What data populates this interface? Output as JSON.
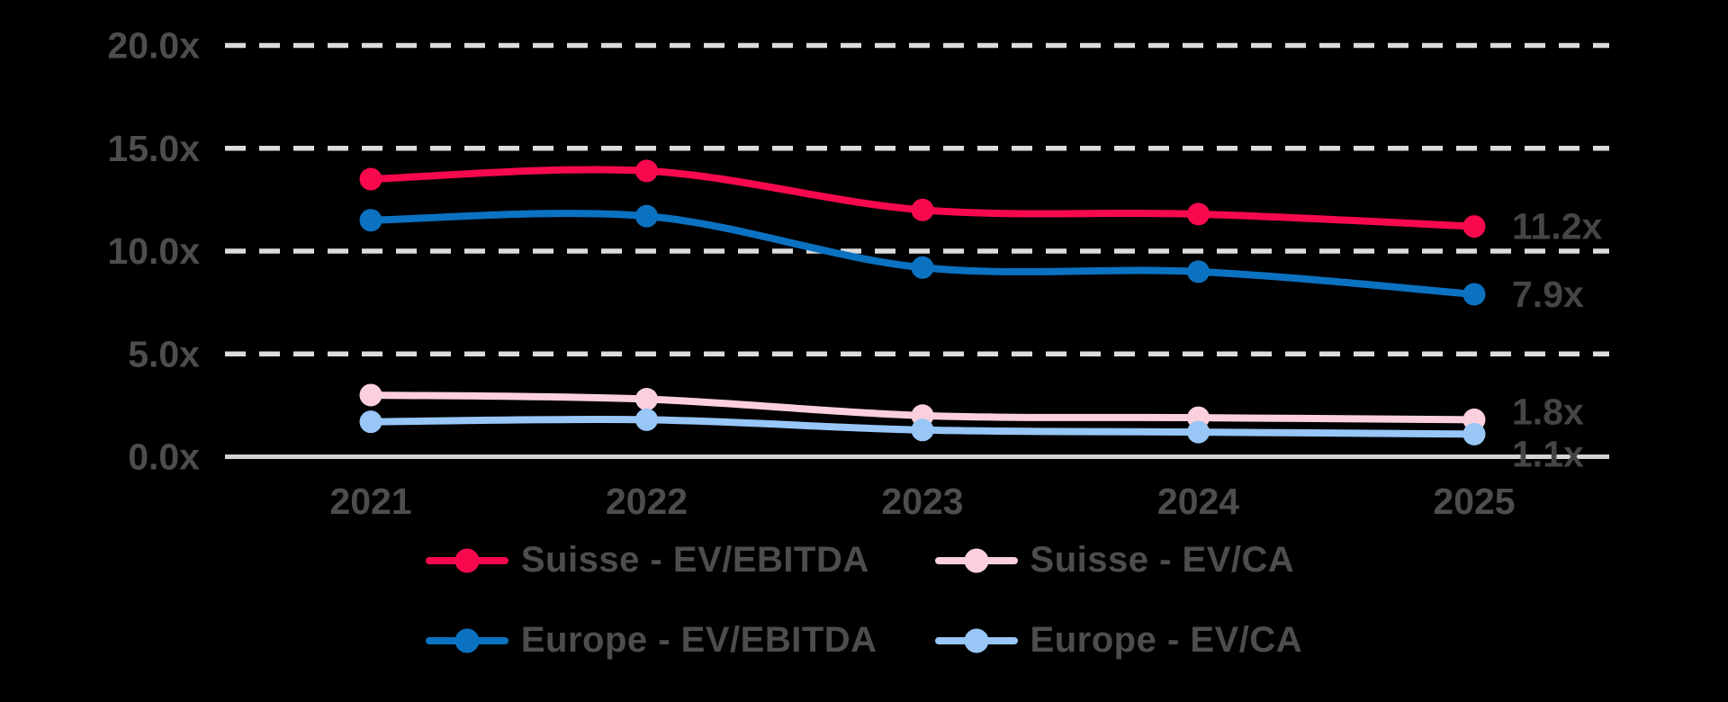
{
  "chart_data": {
    "type": "line",
    "title": "",
    "categories": [
      "2021",
      "2022",
      "2023",
      "2024",
      "2025"
    ],
    "series": [
      {
        "name": "Suisse - EV/EBITDA",
        "color": "#F8094E",
        "values": [
          13.5,
          13.9,
          12.0,
          11.8,
          11.2
        ],
        "end_label": "11.2x"
      },
      {
        "name": "Suisse - EV/CA",
        "color": "#FBD0DC",
        "values": [
          3.0,
          2.8,
          2.0,
          1.9,
          1.8
        ],
        "end_label": "1.8x"
      },
      {
        "name": "Europe - EV/EBITDA",
        "color": "#0B72C2",
        "values": [
          11.5,
          11.7,
          9.2,
          9.0,
          7.9
        ],
        "end_label": "7.9x"
      },
      {
        "name": "Europe - EV/CA",
        "color": "#97C6F7",
        "values": [
          1.7,
          1.8,
          1.3,
          1.2,
          1.1
        ],
        "end_label": "1.1x"
      }
    ],
    "y_ticks": [
      {
        "value": 20,
        "label": "20.0x"
      },
      {
        "value": 15,
        "label": "15.0x"
      },
      {
        "value": 10,
        "label": "10.0x"
      },
      {
        "value": 5,
        "label": "5.0x"
      },
      {
        "value": 0,
        "label": "0.0x"
      }
    ],
    "ylim": [
      0,
      20
    ],
    "grid": "horizontal-dashed",
    "legend_position": "bottom",
    "legend_rows": [
      [
        "Suisse - EV/EBITDA",
        "Suisse - EV/CA"
      ],
      [
        "Europe - EV/EBITDA",
        "Europe - EV/CA"
      ]
    ]
  },
  "colors": {
    "background": "#000000",
    "gridline": "#DCDCDC",
    "axis_line": "#D4D4D4",
    "tick_label": "#4D4D4D",
    "data_label": "#454545",
    "legend_label": "#4D4D4D"
  }
}
